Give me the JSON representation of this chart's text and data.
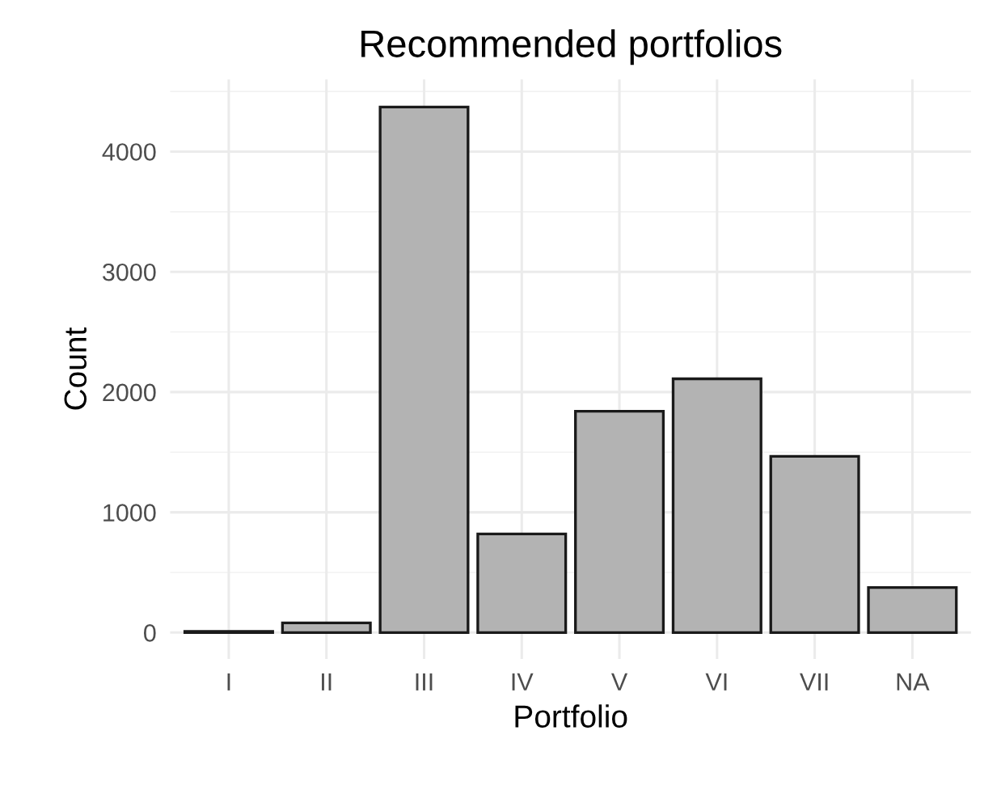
{
  "chart_data": {
    "type": "bar",
    "title": "Recommended portfolios",
    "xlabel": "Portfolio",
    "ylabel": "Count",
    "categories": [
      "I",
      "II",
      "III",
      "IV",
      "V",
      "VI",
      "VII",
      "NA"
    ],
    "values": [
      10,
      80,
      4370,
      820,
      1840,
      2110,
      1465,
      375
    ],
    "color": "#b3b3b3",
    "ylim": [
      -220,
      4600
    ],
    "yticks": [
      0,
      1000,
      2000,
      3000,
      4000
    ],
    "grid": true
  }
}
